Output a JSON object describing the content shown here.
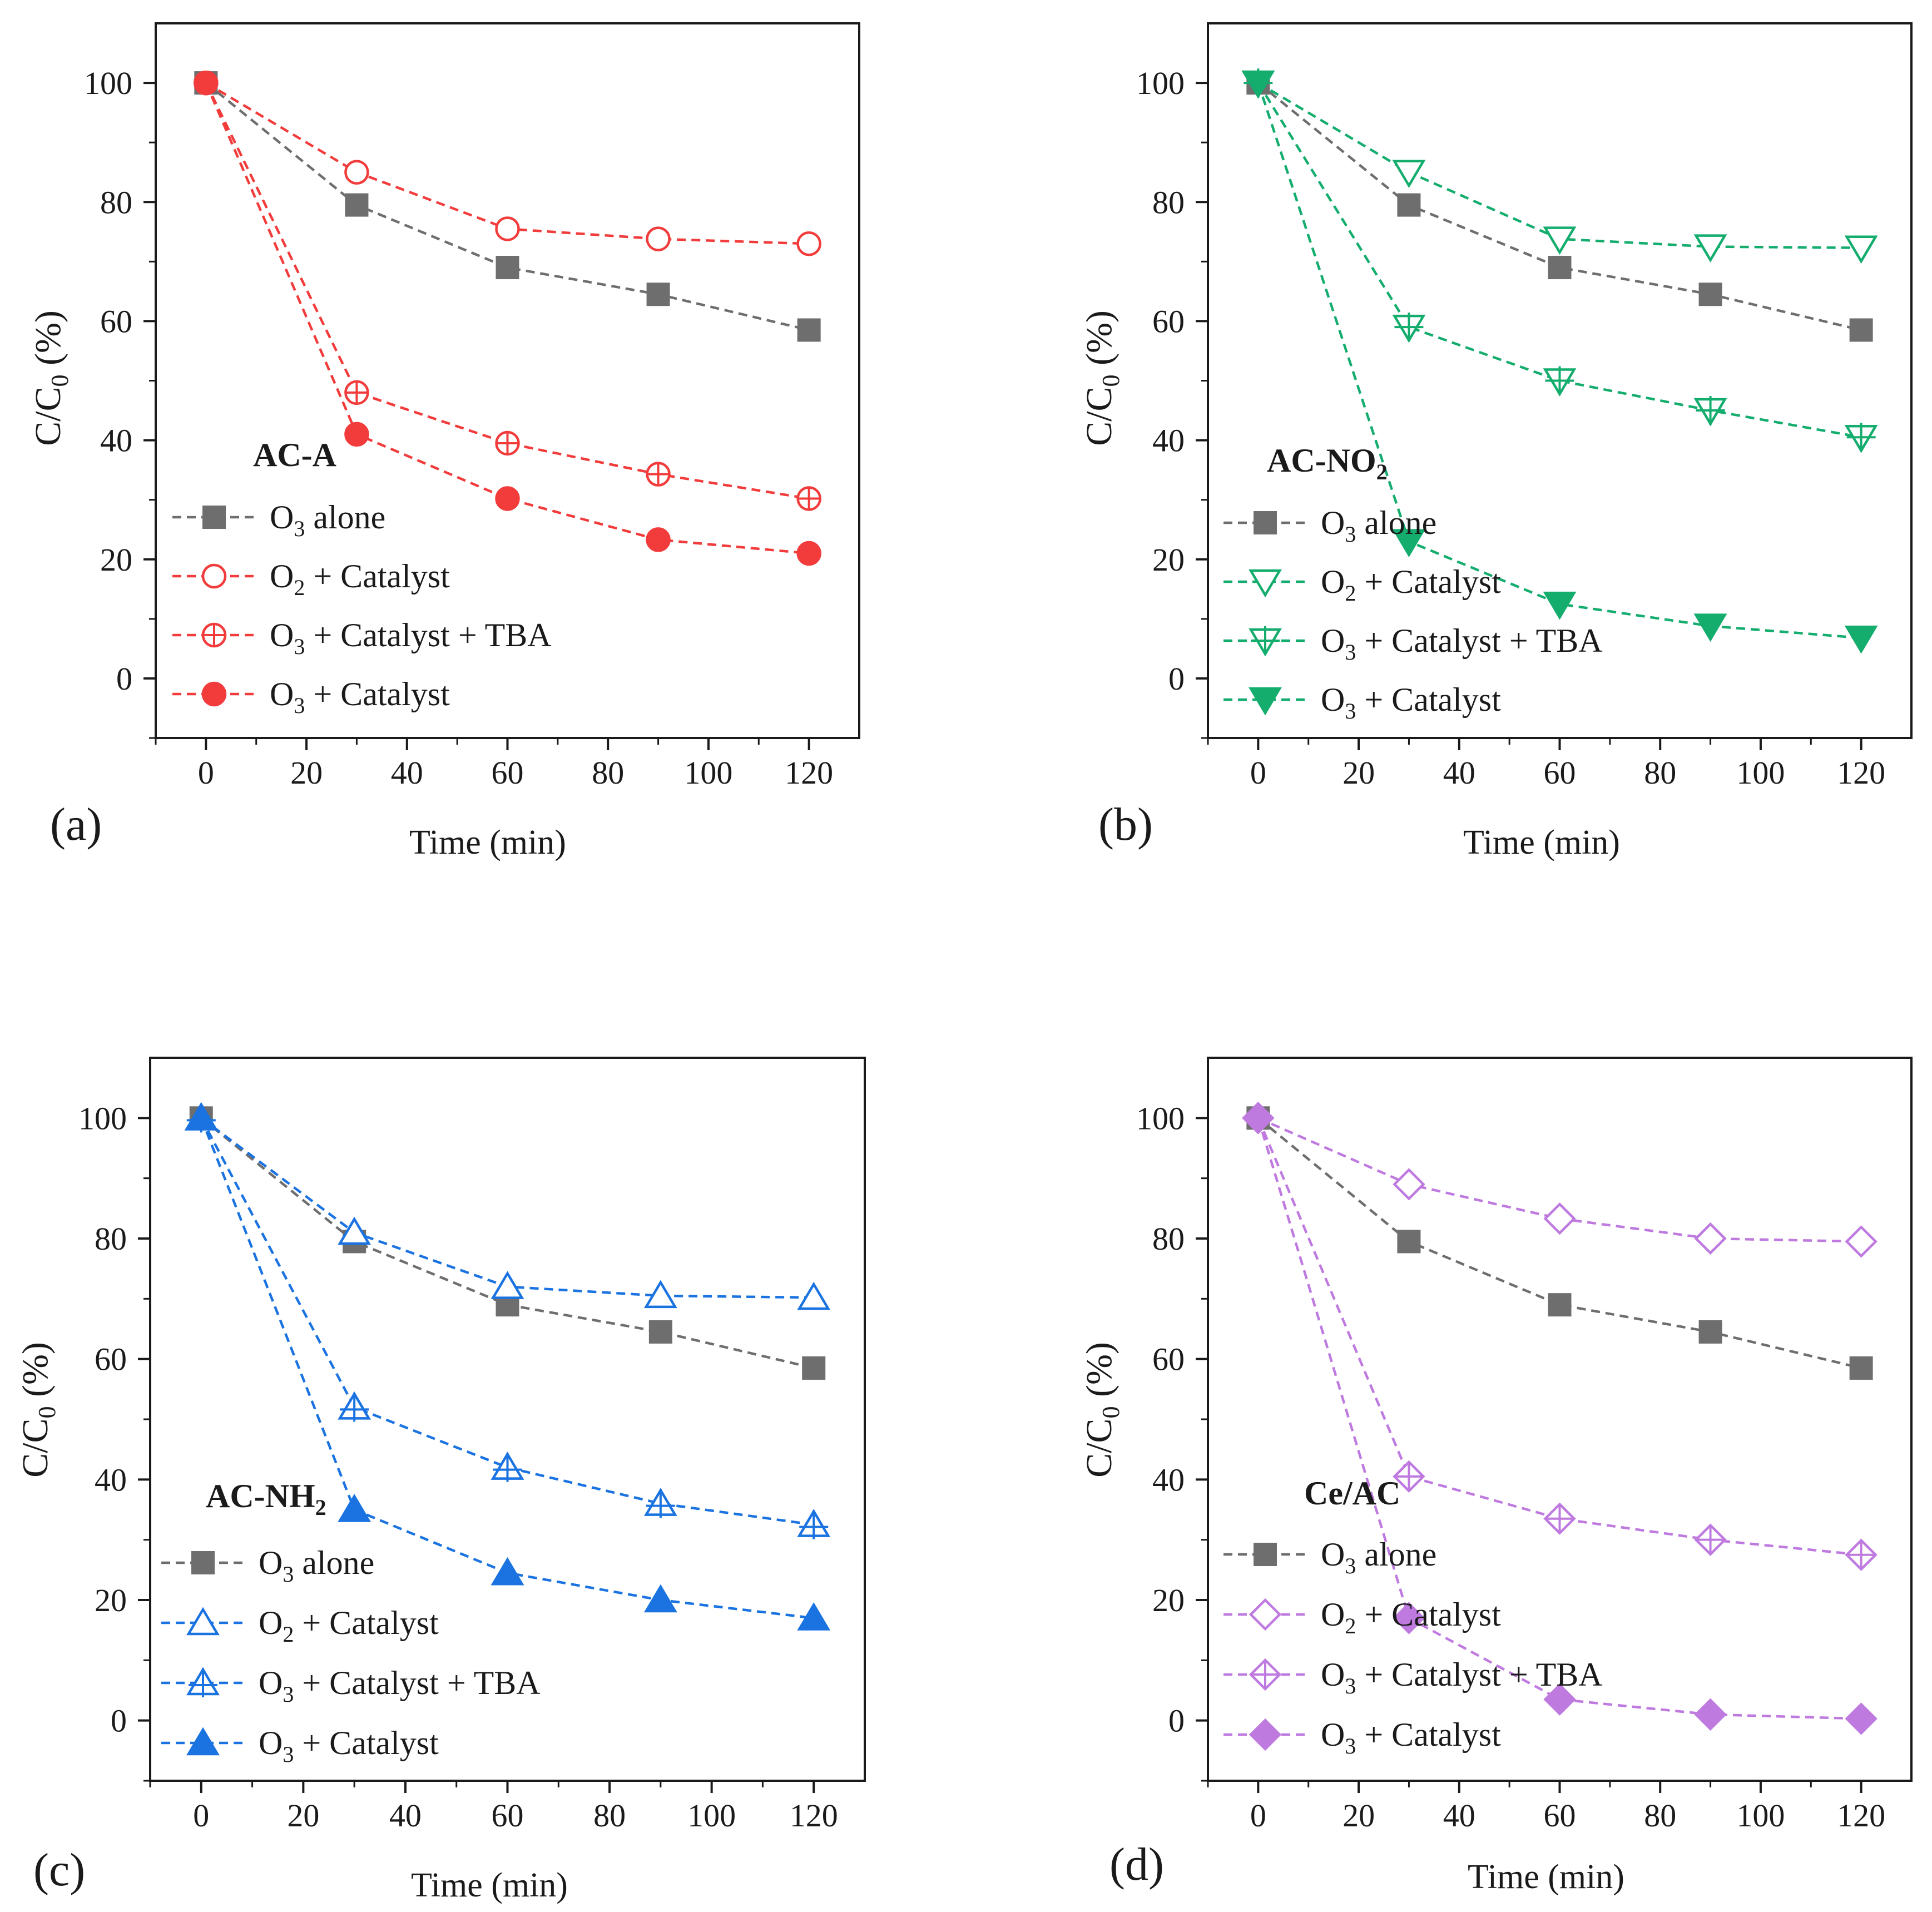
{
  "chart_data": [
    {
      "type": "line",
      "panel_label": "(a)",
      "xlabel": "Time (min)",
      "ylabel": {
        "base": "C/C",
        "sub": "0",
        "suffix": " (%)"
      },
      "x_ticks": [
        "0",
        "20",
        "40",
        "60",
        "80",
        "100",
        "120"
      ],
      "y_ticks": [
        "0",
        "20",
        "40",
        "60",
        "80",
        "100"
      ],
      "xlim": [
        -10,
        130
      ],
      "ylim": [
        -10,
        110
      ],
      "legend_title": {
        "base": "AC-A",
        "sub": ""
      },
      "legend_position": "bottom-left",
      "color": "#f23c3c",
      "x": [
        0,
        30,
        60,
        90,
        120
      ],
      "series": [
        {
          "name": {
            "pre": "O",
            "sub": "3",
            "post": " alone"
          },
          "marker": "square",
          "color": "#6e6e6e",
          "values": [
            100,
            79.5,
            69,
            64.5,
            58.5
          ]
        },
        {
          "name": {
            "pre": "O",
            "sub": "2",
            "post": " + Catalyst"
          },
          "marker": "circle-open",
          "values": [
            100,
            85,
            75.5,
            73.8,
            73
          ]
        },
        {
          "name": {
            "pre": "O",
            "sub": "3",
            "post": " + Catalyst + TBA"
          },
          "marker": "circle-cross",
          "values": [
            100,
            48,
            39.5,
            34.3,
            30.2
          ]
        },
        {
          "name": {
            "pre": "O",
            "sub": "3",
            "post": " + Catalyst"
          },
          "marker": "circle-filled",
          "values": [
            100,
            41,
            30.2,
            23.3,
            21
          ]
        }
      ]
    },
    {
      "type": "line",
      "panel_label": "(b)",
      "xlabel": "Time (min)",
      "ylabel": {
        "base": "C/C",
        "sub": "0",
        "suffix": " (%)"
      },
      "x_ticks": [
        "0",
        "20",
        "40",
        "60",
        "80",
        "100",
        "120"
      ],
      "y_ticks": [
        "0",
        "20",
        "40",
        "60",
        "80",
        "100"
      ],
      "xlim": [
        -10,
        130
      ],
      "ylim": [
        -10,
        110
      ],
      "legend_title": {
        "base": "AC-NO",
        "sub": "2"
      },
      "legend_position": "bottom-left",
      "color": "#14ad6e",
      "x": [
        0,
        30,
        60,
        90,
        120
      ],
      "series": [
        {
          "name": {
            "pre": "O",
            "sub": "3",
            "post": " alone"
          },
          "marker": "square",
          "color": "#6e6e6e",
          "values": [
            100,
            79.5,
            69,
            64.5,
            58.5
          ]
        },
        {
          "name": {
            "pre": "O",
            "sub": "2",
            "post": " + Catalyst"
          },
          "marker": "tri-down-open",
          "values": [
            100,
            85,
            73.8,
            72.5,
            72.3
          ]
        },
        {
          "name": {
            "pre": "O",
            "sub": "3",
            "post": " + Catalyst + TBA"
          },
          "marker": "tri-down-cross",
          "values": [
            100,
            59,
            50,
            45,
            40.5
          ]
        },
        {
          "name": {
            "pre": "O",
            "sub": "3",
            "post": " + Catalyst"
          },
          "marker": "tri-down-filled",
          "values": [
            100,
            23,
            12.5,
            8.8,
            6.8
          ]
        }
      ]
    },
    {
      "type": "line",
      "panel_label": "(c)",
      "xlabel": "Time (min)",
      "ylabel": {
        "base": "C/C",
        "sub": "0",
        "suffix": " (%)"
      },
      "x_ticks": [
        "0",
        "20",
        "40",
        "60",
        "80",
        "100",
        "120"
      ],
      "y_ticks": [
        "0",
        "20",
        "40",
        "60",
        "80",
        "100"
      ],
      "xlim": [
        -10,
        130
      ],
      "ylim": [
        -10,
        110
      ],
      "legend_title": {
        "base": "AC-NH",
        "sub": "2"
      },
      "legend_position": "bottom-left",
      "color": "#1a73e0",
      "x": [
        0,
        30,
        60,
        90,
        120
      ],
      "series": [
        {
          "name": {
            "pre": "O",
            "sub": "3",
            "post": " alone"
          },
          "marker": "square",
          "color": "#6e6e6e",
          "values": [
            100,
            79.5,
            69,
            64.5,
            58.5
          ]
        },
        {
          "name": {
            "pre": "O",
            "sub": "2",
            "post": " + Catalyst"
          },
          "marker": "tri-up-open",
          "values": [
            100,
            81,
            72,
            70.5,
            70.2
          ]
        },
        {
          "name": {
            "pre": "O",
            "sub": "3",
            "post": " + Catalyst + TBA"
          },
          "marker": "tri-up-cross",
          "values": [
            100,
            52,
            42,
            36,
            32.5
          ]
        },
        {
          "name": {
            "pre": "O",
            "sub": "3",
            "post": " + Catalyst"
          },
          "marker": "tri-up-filled",
          "values": [
            100,
            35,
            24.5,
            20,
            17
          ]
        }
      ]
    },
    {
      "type": "line",
      "panel_label": "(d)",
      "xlabel": "Time (min)",
      "ylabel": {
        "base": "C/C",
        "sub": "0",
        "suffix": " (%)"
      },
      "x_ticks": [
        "0",
        "20",
        "40",
        "60",
        "80",
        "100",
        "120"
      ],
      "y_ticks": [
        "0",
        "20",
        "40",
        "60",
        "80",
        "100"
      ],
      "xlim": [
        -10,
        130
      ],
      "ylim": [
        -10,
        110
      ],
      "legend_title": {
        "base": "Ce/AC",
        "sub": ""
      },
      "legend_position": "bottom-left",
      "color": "#bf7ae0",
      "x": [
        0,
        30,
        60,
        90,
        120
      ],
      "series": [
        {
          "name": {
            "pre": "O",
            "sub": "3",
            "post": " alone"
          },
          "marker": "square",
          "color": "#6e6e6e",
          "values": [
            100,
            79.5,
            69,
            64.5,
            58.5
          ]
        },
        {
          "name": {
            "pre": "O",
            "sub": "2",
            "post": " + Catalyst"
          },
          "marker": "diamond-open",
          "values": [
            100,
            89,
            83.3,
            80,
            79.5
          ]
        },
        {
          "name": {
            "pre": "O",
            "sub": "3",
            "post": " + Catalyst + TBA"
          },
          "marker": "diamond-cross",
          "values": [
            100,
            40.5,
            33.5,
            30,
            27.5
          ]
        },
        {
          "name": {
            "pre": "O",
            "sub": "3",
            "post": " + Catalyst"
          },
          "marker": "diamond-filled",
          "values": [
            100,
            17,
            3.5,
            1,
            0.3
          ]
        }
      ]
    }
  ]
}
